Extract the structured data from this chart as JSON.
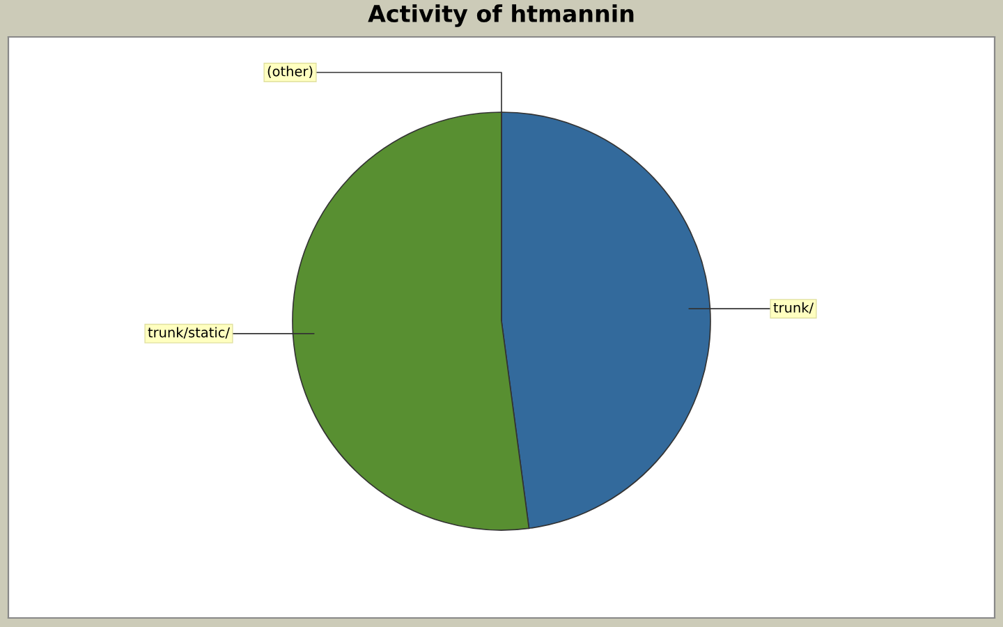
{
  "chart_data": {
    "type": "pie",
    "title": "Activity of htmannin",
    "categories": [
      "trunk/",
      "trunk/static/",
      "(other)"
    ],
    "values": [
      47.9,
      52.1,
      0
    ],
    "colors": [
      "#336a9c",
      "#588f31",
      "#c33b3b"
    ]
  }
}
